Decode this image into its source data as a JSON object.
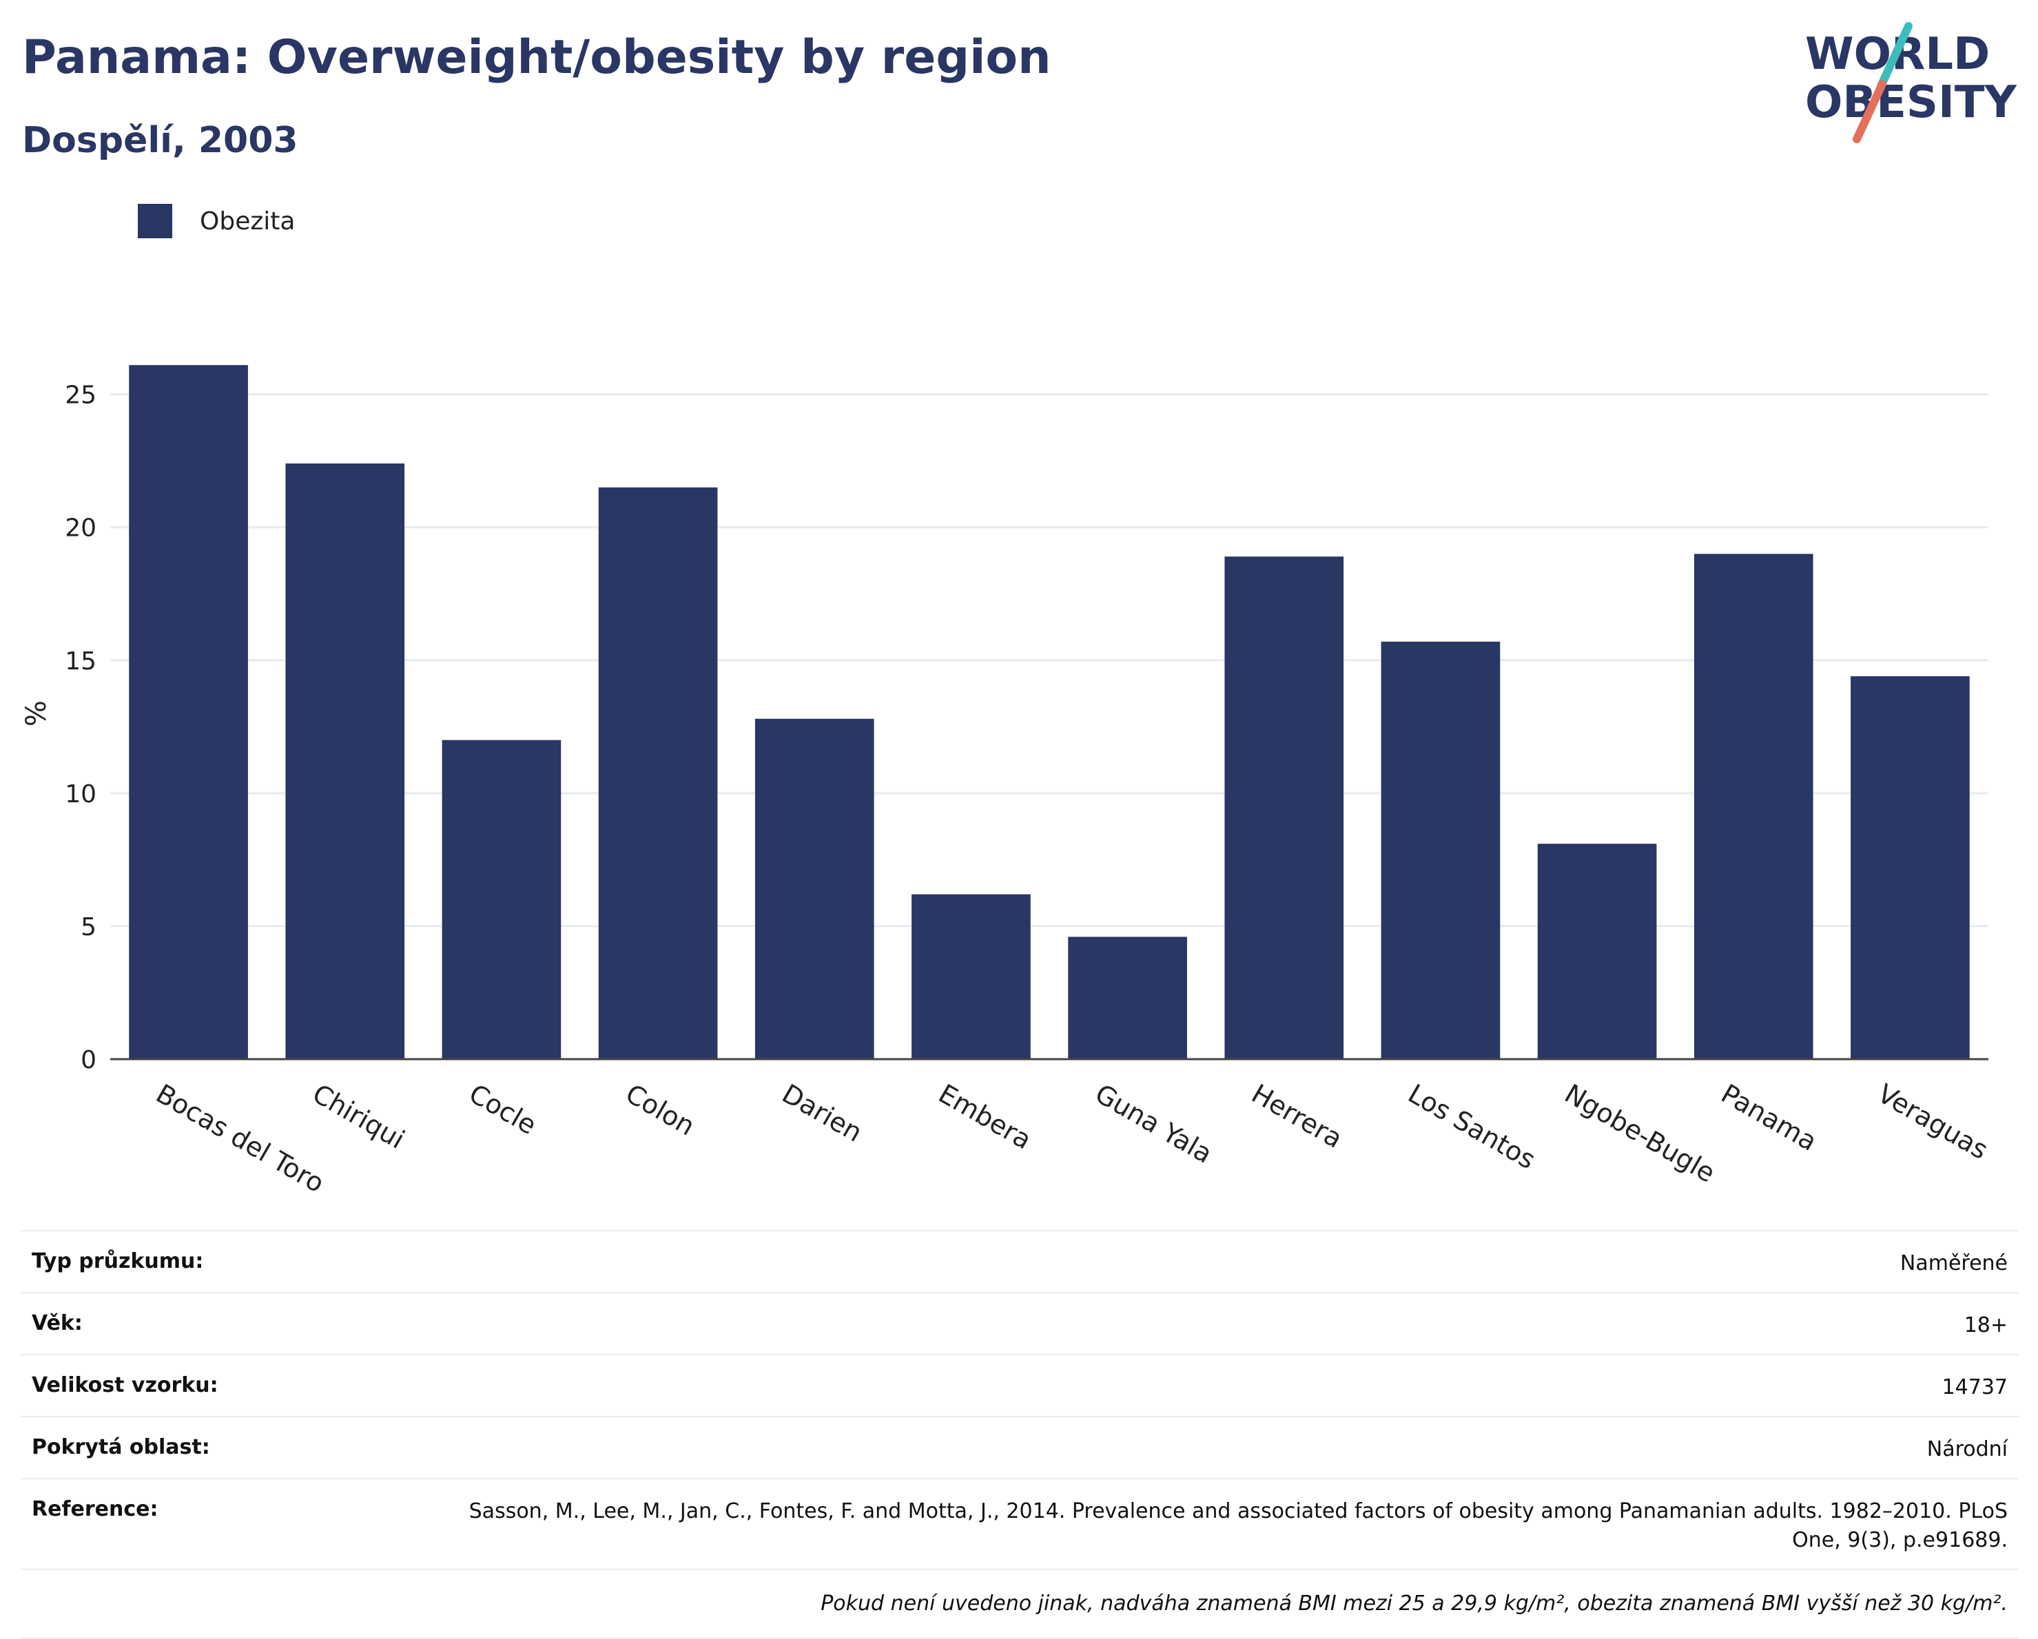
{
  "header": {
    "title": "Panama: Overweight/obesity by region",
    "subtitle": "Dospělí, 2003"
  },
  "logo": {
    "line1": "WORLD",
    "line2": "OBESITY",
    "accent_colors": [
      "#3cbcbc",
      "#e4705c"
    ]
  },
  "colors": {
    "bar": "#2a3663",
    "grid": "#e8ebf0",
    "axis": "#444444",
    "text": "#222222"
  },
  "chart_data": {
    "type": "bar",
    "ylabel": "%",
    "xlabel": "",
    "ylim": [
      0,
      26
    ],
    "yticks": [
      0,
      5,
      10,
      15,
      20,
      25
    ],
    "grid": true,
    "legend_position": "top-left",
    "categories": [
      "Bocas del Toro",
      "Chiriqui",
      "Cocle",
      "Colon",
      "Darien",
      "Embera",
      "Guna Yala",
      "Herrera",
      "Los Santos",
      "Ngobe-Bugle",
      "Panama",
      "Veraguas"
    ],
    "series": [
      {
        "name": "Obezita",
        "color": "#2a3663",
        "values": [
          26.1,
          22.4,
          12.0,
          21.5,
          12.8,
          6.2,
          4.6,
          18.9,
          15.7,
          8.1,
          19.0,
          14.4
        ]
      }
    ]
  },
  "info": {
    "rows": [
      {
        "key": "Typ průzkumu:",
        "value": "Naměřené"
      },
      {
        "key": "Věk:",
        "value": "18+"
      },
      {
        "key": "Velikost vzorku:",
        "value": "14737"
      },
      {
        "key": "Pokrytá oblast:",
        "value": "Národní"
      },
      {
        "key": "Reference:",
        "value": "Sasson, M., Lee, M., Jan, C., Fontes, F. and Motta, J., 2014. Prevalence and associated factors of obesity among Panamanian adults. 1982–2010. PLoS One, 9(3), p.e91689."
      }
    ],
    "note": "Pokud není uvedeno jinak, nadváha znamená BMI mezi 25 a 29,9 kg/m², obezita znamená BMI vyšší než 30 kg/m²."
  }
}
